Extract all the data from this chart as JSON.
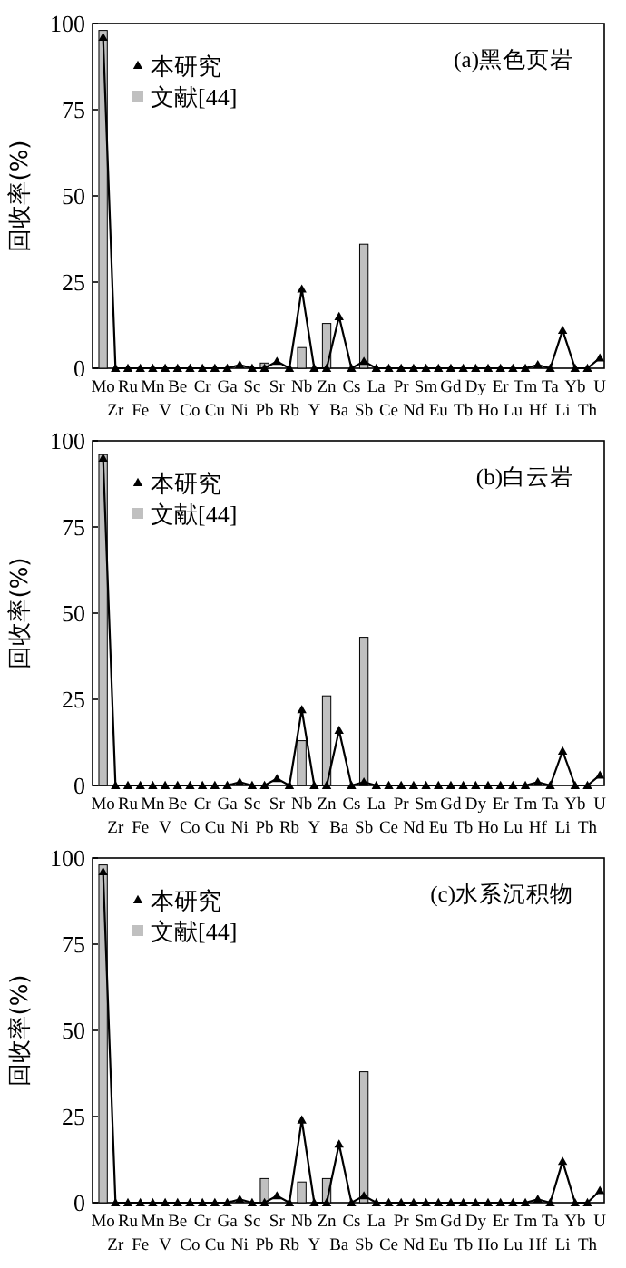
{
  "chart_data": [
    {
      "type": "bar",
      "title": "(a)黑色页岩",
      "ylabel": "回收率(%)",
      "legend": "top left",
      "ylim": [
        0,
        100
      ],
      "yticks": [
        0,
        25,
        50,
        75,
        100
      ],
      "categories": [
        "Mo",
        "Zr",
        "Ru",
        "Fe",
        "Mn",
        "V",
        "Be",
        "Co",
        "Cr",
        "Cu",
        "Ga",
        "Ni",
        "Sc",
        "Pb",
        "Sr",
        "Rb",
        "Nb",
        "Y",
        "Zn",
        "Ba",
        "Cs",
        "Sb",
        "La",
        "Ce",
        "Pr",
        "Nd",
        "Sm",
        "Eu",
        "Gd",
        "Tb",
        "Dy",
        "Ho",
        "Er",
        "Lu",
        "Tm",
        "Hf",
        "Ta",
        "Li",
        "Yb",
        "Th",
        "U"
      ],
      "series": [
        {
          "name": "本研究",
          "type": "line",
          "marker": "triangle",
          "color": "#000000",
          "values": [
            96,
            0,
            0,
            0,
            0,
            0,
            0,
            0,
            0,
            0,
            0,
            1,
            0,
            0,
            2,
            0,
            23,
            0,
            0,
            15,
            0,
            2,
            0,
            0,
            0,
            0,
            0,
            0,
            0,
            0,
            0,
            0,
            0,
            0,
            0,
            1,
            0,
            11,
            0,
            0,
            3
          ]
        },
        {
          "name": "文献[44]",
          "color": "#c0c0c0",
          "values": [
            98,
            null,
            null,
            null,
            null,
            null,
            null,
            null,
            null,
            null,
            null,
            null,
            null,
            1.5,
            null,
            null,
            6,
            null,
            13,
            null,
            null,
            36,
            null,
            null,
            null,
            null,
            null,
            null,
            null,
            null,
            null,
            null,
            null,
            null,
            null,
            null,
            null,
            null,
            null,
            null,
            null
          ]
        }
      ]
    },
    {
      "type": "bar",
      "title": "(b)白云岩",
      "ylabel": "回收率(%)",
      "legend": "top left",
      "ylim": [
        0,
        100
      ],
      "yticks": [
        0,
        25,
        50,
        75,
        100
      ],
      "categories": [
        "Mo",
        "Zr",
        "Ru",
        "Fe",
        "Mn",
        "V",
        "Be",
        "Co",
        "Cr",
        "Cu",
        "Ga",
        "Ni",
        "Sc",
        "Pb",
        "Sr",
        "Rb",
        "Nb",
        "Y",
        "Zn",
        "Ba",
        "Cs",
        "Sb",
        "La",
        "Ce",
        "Pr",
        "Nd",
        "Sm",
        "Eu",
        "Gd",
        "Tb",
        "Dy",
        "Ho",
        "Er",
        "Lu",
        "Tm",
        "Hf",
        "Ta",
        "Li",
        "Yb",
        "Th",
        "U"
      ],
      "series": [
        {
          "name": "本研究",
          "type": "line",
          "marker": "triangle",
          "color": "#000000",
          "values": [
            95,
            0,
            0,
            0,
            0,
            0,
            0,
            0,
            0,
            0,
            0,
            1,
            0,
            0,
            2,
            0,
            22,
            0,
            0,
            16,
            0,
            1,
            0,
            0,
            0,
            0,
            0,
            0,
            0,
            0,
            0,
            0,
            0,
            0,
            0,
            1,
            0,
            10,
            0,
            0,
            3
          ]
        },
        {
          "name": "文献[44]",
          "color": "#c0c0c0",
          "values": [
            96,
            null,
            null,
            null,
            null,
            null,
            null,
            null,
            null,
            null,
            null,
            null,
            null,
            null,
            null,
            null,
            13,
            null,
            26,
            null,
            null,
            43,
            null,
            null,
            null,
            null,
            null,
            null,
            null,
            null,
            null,
            null,
            null,
            null,
            null,
            null,
            null,
            null,
            null,
            null,
            null
          ]
        }
      ]
    },
    {
      "type": "bar",
      "title": "(c)水系沉积物",
      "ylabel": "回收率(%)",
      "legend": "top left",
      "ylim": [
        0,
        100
      ],
      "yticks": [
        0,
        25,
        50,
        75,
        100
      ],
      "categories": [
        "Mo",
        "Zr",
        "Ru",
        "Fe",
        "Mn",
        "V",
        "Be",
        "Co",
        "Cr",
        "Cu",
        "Ga",
        "Ni",
        "Sc",
        "Pb",
        "Sr",
        "Rb",
        "Nb",
        "Y",
        "Zn",
        "Ba",
        "Cs",
        "Sb",
        "La",
        "Ce",
        "Pr",
        "Nd",
        "Sm",
        "Eu",
        "Gd",
        "Tb",
        "Dy",
        "Ho",
        "Er",
        "Lu",
        "Tm",
        "Hf",
        "Ta",
        "Li",
        "Yb",
        "Th",
        "U"
      ],
      "series": [
        {
          "name": "本研究",
          "type": "line",
          "marker": "triangle",
          "color": "#000000",
          "values": [
            96,
            0,
            0,
            0,
            0,
            0,
            0,
            0,
            0,
            0,
            0,
            1,
            0,
            0,
            2,
            0,
            24,
            0,
            0,
            17,
            0,
            2,
            0,
            0,
            0,
            0,
            0,
            0,
            0,
            0,
            0,
            0,
            0,
            0,
            0,
            1,
            0,
            12,
            0,
            0,
            3.5
          ]
        },
        {
          "name": "文献[44]",
          "color": "#c0c0c0",
          "values": [
            98,
            null,
            null,
            null,
            null,
            null,
            null,
            null,
            null,
            null,
            null,
            null,
            null,
            7,
            null,
            null,
            6,
            null,
            7,
            null,
            null,
            38,
            null,
            null,
            null,
            null,
            null,
            null,
            null,
            null,
            null,
            null,
            null,
            null,
            null,
            null,
            null,
            null,
            null,
            null,
            null
          ]
        }
      ]
    }
  ]
}
